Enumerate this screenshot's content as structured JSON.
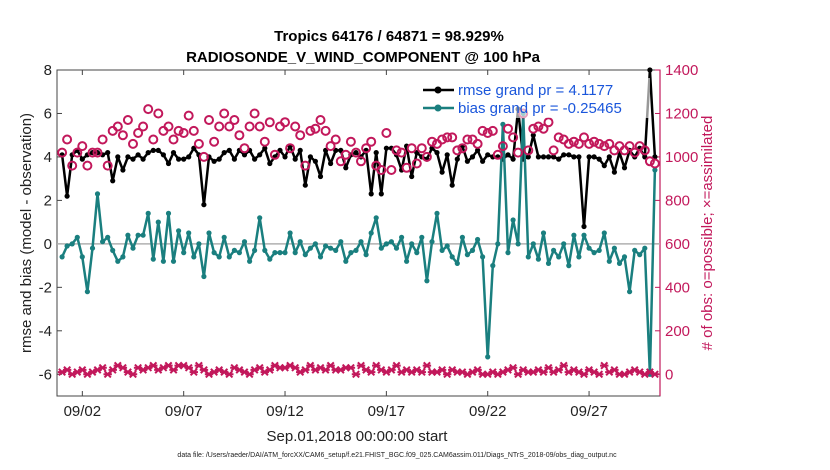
{
  "chart_data": {
    "type": "line",
    "title": "Tropics 64176 / 64871 = 98.929%",
    "subtitle": "RADIOSONDE_V_WIND_COMPONENT @ 100 hPa",
    "xlabel": "Sep.01,2018 00:00:00 start",
    "ylabel_left": "rmse and bias (model - observation)",
    "ylabel_right": "# of obs: o=possible; ×=assimilated",
    "footer": "data file: /Users/raeder/DAI/ATM_forcXX/CAM6_setup/f.e21.FHIST_BGC.f09_025.CAM6assim.011/Diags_NTrS_2018-09/obs_diag_output.nc",
    "xlim": [
      0.75,
      30.5
    ],
    "ylim_left": [
      -7,
      8
    ],
    "ylim_right": [
      -100,
      1400
    ],
    "x_ticks": [
      2,
      7,
      12,
      17,
      22,
      27
    ],
    "x_tick_labels": [
      "09/02",
      "09/07",
      "09/12",
      "09/17",
      "09/22",
      "09/27"
    ],
    "y_ticks_left": [
      -6,
      -4,
      -2,
      0,
      2,
      4,
      6,
      8
    ],
    "y_tick_labels_left": [
      "-6",
      "-4",
      "-2",
      "0",
      "2",
      "4",
      "6",
      "8"
    ],
    "y_ticks_right": [
      0,
      200,
      400,
      600,
      800,
      1000,
      1200,
      1400
    ],
    "y_tick_labels_right": [
      "0",
      "200",
      "400",
      "600",
      "800",
      "1000",
      "1200",
      "1400"
    ],
    "zero_line": 0,
    "legend": [
      {
        "name": "rmse grand pr = 4.1177",
        "color": "#000000"
      },
      {
        "name": "bias grand pr = -0.25465",
        "color": "#1a7f7f"
      }
    ],
    "x": [
      1.0,
      1.25,
      1.5,
      1.75,
      2.0,
      2.25,
      2.5,
      2.75,
      3.0,
      3.25,
      3.5,
      3.75,
      4.0,
      4.25,
      4.5,
      4.75,
      5.0,
      5.25,
      5.5,
      5.75,
      6.0,
      6.25,
      6.5,
      6.75,
      7.0,
      7.25,
      7.5,
      7.75,
      8.0,
      8.25,
      8.5,
      8.75,
      9.0,
      9.25,
      9.5,
      9.75,
      10.0,
      10.25,
      10.5,
      10.75,
      11.0,
      11.25,
      11.5,
      11.75,
      12.0,
      12.25,
      12.5,
      12.75,
      13.0,
      13.25,
      13.5,
      13.75,
      14.0,
      14.25,
      14.5,
      14.75,
      15.0,
      15.25,
      15.5,
      15.75,
      16.0,
      16.25,
      16.5,
      16.75,
      17.0,
      17.25,
      17.5,
      17.75,
      18.0,
      18.25,
      18.5,
      18.75,
      19.0,
      19.25,
      19.5,
      19.75,
      20.0,
      20.25,
      20.5,
      20.75,
      21.0,
      21.25,
      21.5,
      21.75,
      22.0,
      22.25,
      22.5,
      22.75,
      23.0,
      23.25,
      23.5,
      23.75,
      24.0,
      24.25,
      24.5,
      24.75,
      25.0,
      25.25,
      25.5,
      25.75,
      26.0,
      26.25,
      26.5,
      26.75,
      27.0,
      27.25,
      27.5,
      27.75,
      28.0,
      28.25,
      28.5,
      28.75,
      29.0,
      29.25,
      29.5,
      29.75,
      30.0,
      30.25
    ],
    "series": [
      {
        "name": "rmse",
        "axis": "left",
        "color": "#000000",
        "values": [
          4.1,
          2.2,
          4.1,
          4.3,
          3.9,
          4.1,
          4.2,
          4.2,
          4.1,
          4.2,
          2.9,
          4.0,
          3.4,
          4.0,
          3.9,
          4.1,
          3.9,
          4.2,
          4.3,
          4.3,
          4.1,
          3.7,
          4.2,
          3.9,
          3.9,
          4.0,
          4.4,
          4.1,
          1.8,
          4.0,
          3.8,
          3.9,
          4.2,
          4.3,
          3.9,
          4.3,
          4.1,
          4.3,
          3.9,
          4.1,
          4.4,
          3.7,
          4.0,
          4.3,
          4.0,
          4.5,
          3.9,
          4.3,
          2.7,
          4.0,
          3.8,
          3.1,
          4.3,
          3.7,
          4.3,
          4.3,
          3.5,
          4.1,
          4.2,
          4.0,
          4.3,
          2.3,
          4.2,
          2.3,
          4.4,
          4.4,
          4.1,
          3.4,
          4.5,
          3.1,
          4.2,
          4.0,
          3.9,
          4.4,
          4.2,
          3.3,
          4.1,
          2.7,
          3.9,
          4.5,
          3.8,
          4.0,
          4.3,
          3.8,
          4.1,
          4.0,
          4.0,
          3.9,
          4.1,
          3.9,
          6.2,
          3.9,
          4.0,
          5.0,
          4.0,
          4.0,
          4.0,
          4.0,
          3.9,
          4.1,
          4.1,
          4.0,
          4.0,
          0.8,
          4.0,
          4.0,
          3.9,
          3.6,
          4.0,
          3.3,
          4.2,
          3.5,
          4.3,
          4.0,
          4.4,
          4.0,
          8.0,
          4.0
        ]
      },
      {
        "name": "bias",
        "axis": "left",
        "color": "#1a7f7f",
        "values": [
          -0.6,
          -0.1,
          0.0,
          0.3,
          -0.6,
          -2.2,
          -0.2,
          2.3,
          0.1,
          0.3,
          -0.3,
          -0.8,
          -0.6,
          0.4,
          -0.2,
          0.4,
          0.4,
          1.4,
          -0.7,
          1.0,
          -0.8,
          1.4,
          -0.8,
          0.6,
          -0.4,
          0.5,
          -0.6,
          0.0,
          -1.5,
          0.5,
          -0.4,
          -0.6,
          0.3,
          -0.6,
          -0.3,
          -0.4,
          0.1,
          -0.8,
          -0.3,
          1.2,
          -0.3,
          -0.7,
          -0.4,
          -0.4,
          -0.4,
          0.5,
          -0.4,
          0.1,
          -0.5,
          -0.2,
          0.0,
          -0.6,
          -0.1,
          -0.2,
          -0.3,
          0.1,
          -0.8,
          -0.4,
          -0.3,
          0.1,
          -0.5,
          0.5,
          1.2,
          -0.2,
          0.0,
          0.1,
          -0.2,
          0.3,
          -0.8,
          0.0,
          -0.4,
          0.3,
          -1.7,
          0.1,
          1.4,
          -0.3,
          -0.1,
          -0.6,
          -0.9,
          0.3,
          -0.5,
          -0.3,
          0.2,
          -0.6,
          -5.2,
          -1.0,
          0.0,
          5.5,
          -0.4,
          1.1,
          0.0,
          6.0,
          -0.6,
          0.0,
          -0.7,
          0.5,
          -0.9,
          -0.3,
          -0.6,
          0.0,
          -1.0,
          0.4,
          -0.6,
          0.4,
          -0.2,
          -0.4,
          -0.3,
          0.5,
          -0.8,
          -0.2,
          -0.9,
          -0.6,
          -2.2,
          -0.3,
          -0.5,
          -0.2,
          -6.0,
          3.4
        ]
      },
      {
        "name": "# obs possible",
        "axis": "right",
        "color": "#c2185b",
        "marker": "o",
        "values": [
          1020,
          1080,
          960,
          1020,
          1050,
          960,
          1020,
          1020,
          1080,
          960,
          1120,
          1140,
          1100,
          1170,
          1060,
          1110,
          1140,
          1220,
          1080,
          1200,
          1120,
          1140,
          1080,
          1120,
          1110,
          1190,
          1120,
          1060,
          1000,
          1170,
          1070,
          1140,
          1200,
          1140,
          1170,
          1100,
          1040,
          1140,
          1200,
          1140,
          1070,
          1160,
          1010,
          1140,
          1160,
          1040,
          1140,
          1100,
          960,
          1120,
          1130,
          1170,
          1120,
          1050,
          1080,
          980,
          1010,
          1070,
          1020,
          980,
          1040,
          1070,
          960,
          940,
          1110,
          940,
          1030,
          1020,
          950,
          1040,
          970,
          1040,
          1000,
          1070,
          1060,
          1080,
          1090,
          1090,
          1030,
          1040,
          1080,
          1080,
          1060,
          1120,
          1110,
          1120,
          1010,
          1050,
          1130,
          1090,
          1020,
          1200,
          1030,
          1130,
          1140,
          1130,
          1160,
          1030,
          1090,
          1080,
          1060,
          1070,
          1060,
          1090,
          1060,
          1070,
          1060,
          1050,
          1060,
          1030,
          1050,
          1030,
          1050,
          1020,
          1050,
          1030,
          980,
          970
        ]
      },
      {
        "name": "# obs assimilated",
        "axis": "right",
        "color": "#c2185b",
        "marker": "x",
        "values": [
          10,
          20,
          0,
          10,
          20,
          0,
          10,
          20,
          30,
          0,
          20,
          40,
          30,
          10,
          0,
          30,
          20,
          30,
          40,
          20,
          30,
          40,
          20,
          40,
          40,
          30,
          10,
          40,
          20,
          0,
          10,
          20,
          10,
          0,
          30,
          20,
          10,
          0,
          20,
          30,
          10,
          20,
          40,
          30,
          30,
          40,
          30,
          10,
          20,
          40,
          20,
          30,
          20,
          40,
          20,
          20,
          30,
          30,
          0,
          40,
          20,
          10,
          40,
          20,
          10,
          20,
          40,
          10,
          20,
          10,
          20,
          10,
          40,
          10,
          10,
          20,
          0,
          20,
          10,
          10,
          0,
          10,
          20,
          0,
          0,
          10,
          0,
          10,
          20,
          30,
          0,
          20,
          10,
          10,
          20,
          10,
          30,
          10,
          20,
          40,
          10,
          20,
          10,
          0,
          20,
          10,
          0,
          40,
          10,
          20,
          0,
          0,
          10,
          20,
          10,
          0,
          10,
          0
        ]
      }
    ]
  }
}
